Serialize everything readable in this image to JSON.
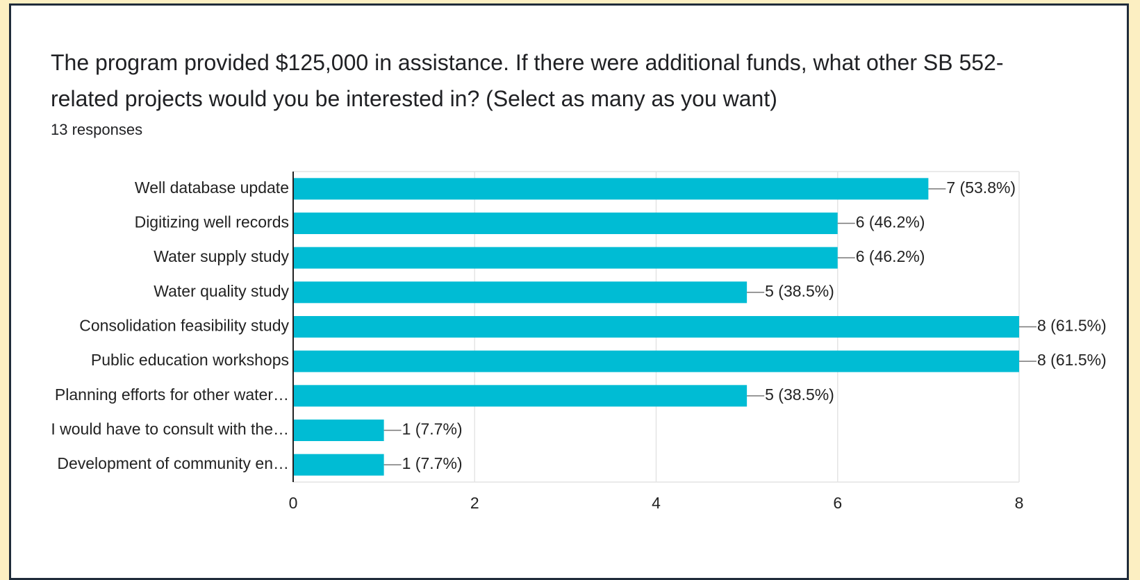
{
  "chart_data": {
    "type": "bar",
    "orientation": "horizontal",
    "title": "The program provided $125,000 in assistance. If there were additional funds, what other SB 552-related projects would you be interested in? (Select as many as you want)",
    "subtitle": "13 responses",
    "categories": [
      "Well database update",
      "Digitizing well records",
      "Water supply study",
      "Water quality study",
      "Consolidation feasibility study",
      "Public education workshops",
      "Planning efforts for other water…",
      "I would have to consult with the…",
      "Development of community en…"
    ],
    "values": [
      7,
      6,
      6,
      5,
      8,
      8,
      5,
      1,
      1
    ],
    "value_labels": [
      "7 (53.8%)",
      "6 (46.2%)",
      "6 (46.2%)",
      "5 (38.5%)",
      "8 (61.5%)",
      "8 (61.5%)",
      "5 (38.5%)",
      "1 (7.7%)",
      "1 (7.7%)"
    ],
    "color": "#00bcd4",
    "xlim": [
      0,
      8
    ],
    "xticks": [
      0,
      2,
      4,
      6,
      8
    ],
    "grid": true
  }
}
